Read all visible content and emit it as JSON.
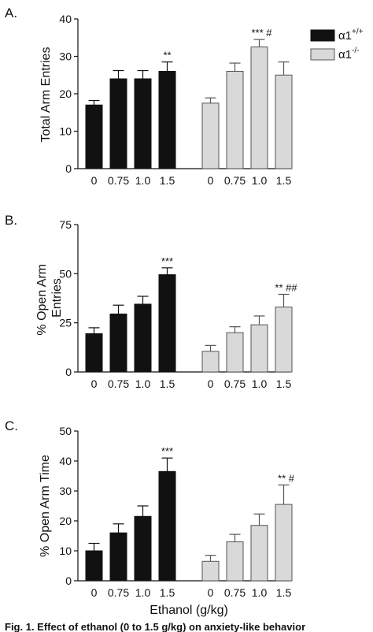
{
  "legend": {
    "entries": [
      {
        "label": "α1",
        "sup": "+/+",
        "color": "#111111"
      },
      {
        "label": "α1",
        "sup": "-/-",
        "color": "#d9d9d9"
      }
    ]
  },
  "figure_caption_fragment": "Fig. 1. Effect of ethanol (0 to 1.5 g/kg) on anxiety-like behavior",
  "chart_data": [
    {
      "type": "bar",
      "panel_label": "A.",
      "ylabel": "Total Arm Entries",
      "ylim": [
        0,
        40
      ],
      "yticks": [
        0,
        10,
        20,
        30,
        40
      ],
      "categories": [
        "0",
        "0.75",
        "1.0",
        "1.5"
      ],
      "xlabel": "",
      "series": [
        {
          "name": "α1+/+",
          "values": [
            17,
            24,
            24,
            26
          ],
          "errors": [
            1.2,
            2.2,
            2.2,
            2.5
          ],
          "annotations": [
            "",
            "",
            "",
            "**"
          ]
        },
        {
          "name": "α1-/-",
          "values": [
            17.5,
            26,
            32.5,
            25
          ],
          "errors": [
            1.4,
            2.2,
            2.0,
            3.5
          ],
          "annotations": [
            "",
            "",
            "*** #",
            ""
          ]
        }
      ]
    },
    {
      "type": "bar",
      "panel_label": "B.",
      "ylabel": "% Open Arm Entries",
      "ylim": [
        0,
        75
      ],
      "yticks": [
        0,
        25,
        50,
        75
      ],
      "categories": [
        "0",
        "0.75",
        "1.0",
        "1.5"
      ],
      "xlabel": "",
      "series": [
        {
          "name": "α1+/+",
          "values": [
            19.5,
            29.5,
            34.5,
            49.5
          ],
          "errors": [
            3.0,
            4.5,
            4.0,
            3.5
          ],
          "annotations": [
            "",
            "",
            "",
            "***"
          ]
        },
        {
          "name": "α1-/-",
          "values": [
            10.5,
            20,
            24,
            33
          ],
          "errors": [
            3.0,
            3.0,
            4.5,
            6.5
          ],
          "annotations": [
            "",
            "",
            "",
            "** ##"
          ]
        }
      ]
    },
    {
      "type": "bar",
      "panel_label": "C.",
      "ylabel": "% Open Arm Time",
      "ylim": [
        0,
        50
      ],
      "yticks": [
        0,
        10,
        20,
        30,
        40,
        50
      ],
      "categories": [
        "0",
        "0.75",
        "1.0",
        "1.5"
      ],
      "xlabel": "Ethanol (g/kg)",
      "series": [
        {
          "name": "α1+/+",
          "values": [
            10,
            16,
            21.5,
            36.5
          ],
          "errors": [
            2.5,
            3.0,
            3.5,
            4.5
          ],
          "annotations": [
            "",
            "",
            "",
            "***"
          ]
        },
        {
          "name": "α1-/-",
          "values": [
            6.5,
            13,
            18.5,
            25.5
          ],
          "errors": [
            2.0,
            2.5,
            3.8,
            6.5
          ],
          "annotations": [
            "",
            "",
            "",
            "** #"
          ]
        }
      ]
    }
  ]
}
